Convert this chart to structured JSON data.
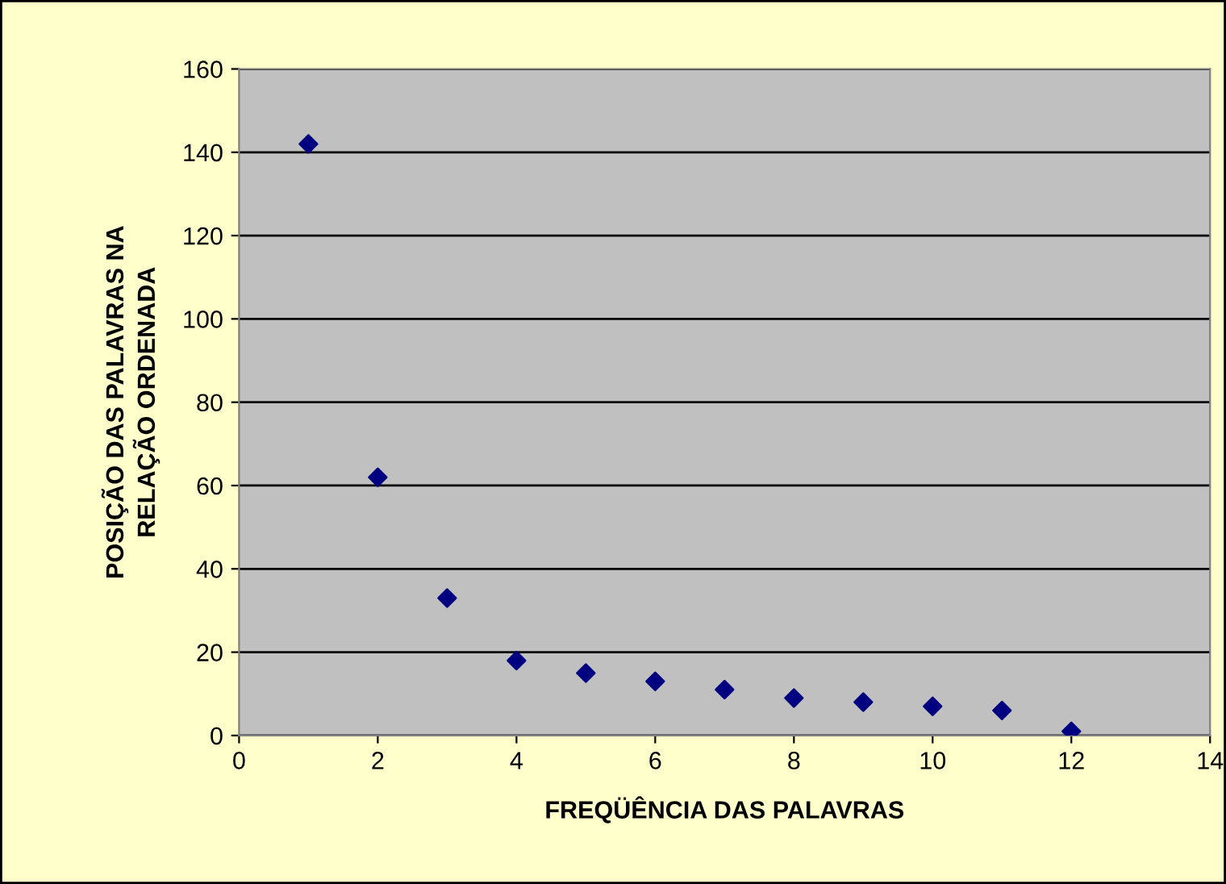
{
  "chart_data": {
    "type": "scatter",
    "xlabel": "FREQÜÊNCIA DAS PALAVRAS",
    "ylabel": "POSIÇÃO DAS PALAVRAS NA\nRELAÇÃO ORDENADA",
    "x": [
      1,
      2,
      3,
      4,
      5,
      6,
      7,
      8,
      9,
      10,
      11,
      12
    ],
    "series": [
      {
        "color": "#000080",
        "values": [
          142,
          62,
          33,
          18,
          15,
          13,
          11,
          9,
          8,
          7,
          6,
          1
        ]
      }
    ],
    "xlim": [
      0,
      14
    ],
    "xticks": [
      0,
      2,
      4,
      6,
      8,
      10,
      12,
      14
    ],
    "ylim": [
      0,
      160
    ],
    "yticks": [
      0,
      20,
      40,
      60,
      80,
      100,
      120,
      140,
      160
    ],
    "grid": "y",
    "marker": "diamond",
    "legend": false
  }
}
